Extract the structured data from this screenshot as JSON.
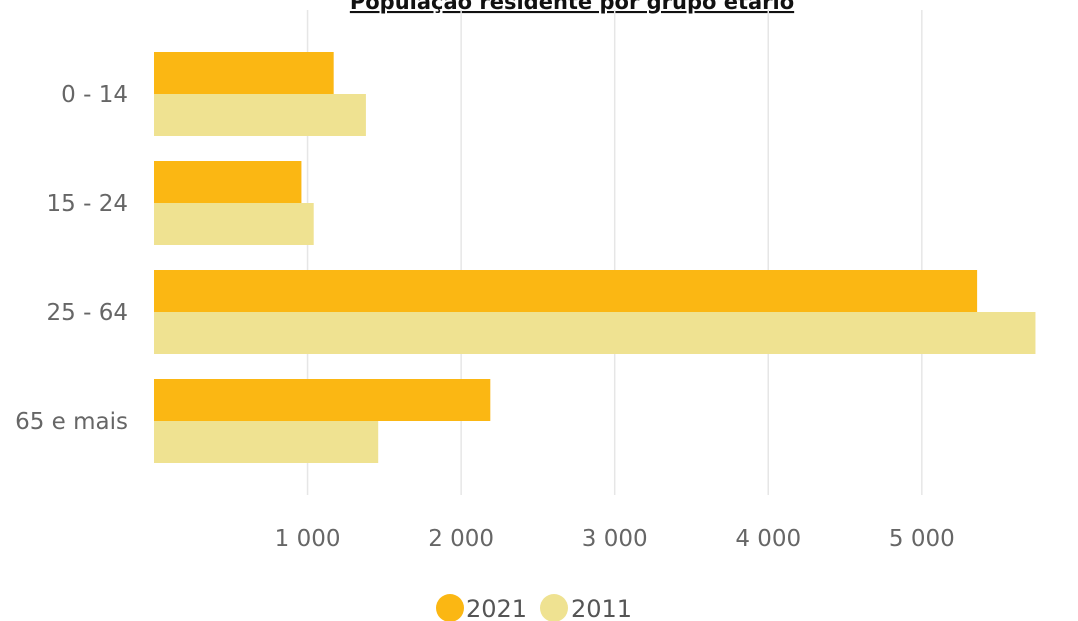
{
  "chart_data": {
    "type": "bar",
    "orientation": "horizontal",
    "title": "População residente por grupo etário",
    "categories": [
      "0 - 14",
      "15 - 24",
      "25 - 64",
      "65 e mais"
    ],
    "series": [
      {
        "name": "2021",
        "color": "#fbb713",
        "values": [
          1170,
          960,
          5360,
          2190
        ]
      },
      {
        "name": "2011",
        "color": "#efe291",
        "values": [
          1380,
          1040,
          5740,
          1460
        ]
      }
    ],
    "xlim": [
      0,
      5750
    ],
    "xticks": [
      1000,
      2000,
      3000,
      4000,
      5000
    ],
    "xtick_labels": [
      "1 000",
      "2 000",
      "3 000",
      "4 000",
      "5 000"
    ],
    "xlabel": "",
    "ylabel": "",
    "grid": "vertical",
    "legend_position": "bottom"
  }
}
